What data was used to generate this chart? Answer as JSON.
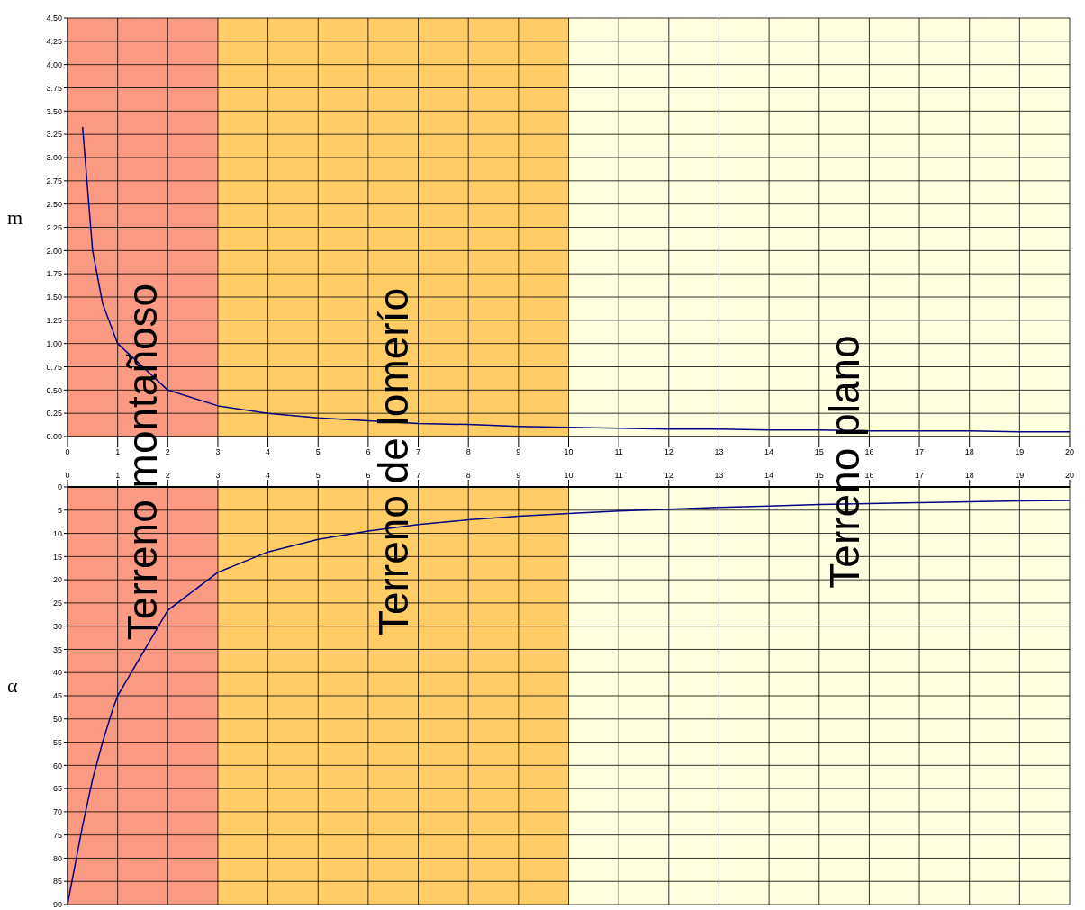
{
  "chart_data": [
    {
      "type": "line",
      "ylabel": "m",
      "xlim": [
        0,
        20
      ],
      "xticks": [
        0,
        1,
        2,
        3,
        4,
        5,
        6,
        7,
        8,
        9,
        10,
        11,
        12,
        13,
        14,
        15,
        16,
        17,
        18,
        19,
        20
      ],
      "ylim": [
        0,
        4.5
      ],
      "yticks": [
        {
          "value": 0,
          "label": "0.00"
        },
        {
          "value": 0.25,
          "label": "0.25"
        },
        {
          "value": 0.5,
          "label": "0.50"
        },
        {
          "value": 0.75,
          "label": "0.75"
        },
        {
          "value": 1,
          "label": "1.00"
        },
        {
          "value": 1.25,
          "label": "1.25"
        },
        {
          "value": 1.5,
          "label": "1.50"
        },
        {
          "value": 1.75,
          "label": "1.75"
        },
        {
          "value": 2,
          "label": "2.00"
        },
        {
          "value": 2.25,
          "label": "2.25"
        },
        {
          "value": 2.5,
          "label": "2.50"
        },
        {
          "value": 2.75,
          "label": "2.75"
        },
        {
          "value": 3,
          "label": "3.00"
        },
        {
          "value": 3.25,
          "label": "3.25"
        },
        {
          "value": 3.5,
          "label": "3.50"
        },
        {
          "value": 3.75,
          "label": "3.75"
        },
        {
          "value": 4,
          "label": "4.00"
        },
        {
          "value": 4.25,
          "label": "4.25"
        },
        {
          "value": 4.5,
          "label": "4.50"
        }
      ],
      "grid": true,
      "marker": "none",
      "line_style": "solid",
      "bands": [
        {
          "axis": "x",
          "from": 0,
          "to": 3,
          "label": "Terreno montañoso",
          "color": "#fb9a82"
        },
        {
          "axis": "x",
          "from": 3,
          "to": 10,
          "label": "Terreno de lomerío",
          "color": "#ffcc66"
        },
        {
          "axis": "x",
          "from": 10,
          "to": 20,
          "label": "Terreno plano",
          "color": "#ffffe0"
        }
      ],
      "series": [
        {
          "color": "#000080",
          "x": [
            0.3,
            0.5,
            0.7,
            1,
            2,
            3,
            4,
            5,
            6,
            7,
            8,
            9,
            10,
            11,
            12,
            13,
            14,
            15,
            16,
            17,
            18,
            19,
            20
          ],
          "values": [
            3.33,
            2,
            1.43,
            1,
            0.5,
            0.33,
            0.25,
            0.2,
            0.17,
            0.14,
            0.13,
            0.11,
            0.1,
            0.09,
            0.08,
            0.08,
            0.07,
            0.07,
            0.06,
            0.06,
            0.06,
            0.05,
            0.05
          ]
        }
      ]
    },
    {
      "type": "line",
      "ylabel": "α",
      "xlim": [
        0,
        20
      ],
      "xticks": [
        0,
        1,
        2,
        3,
        4,
        5,
        6,
        7,
        8,
        9,
        10,
        11,
        12,
        13,
        14,
        15,
        16,
        17,
        18,
        19,
        20
      ],
      "ylim": [
        90,
        0
      ],
      "yticks": [
        0,
        5,
        10,
        15,
        20,
        25,
        30,
        35,
        40,
        45,
        50,
        55,
        60,
        65,
        70,
        75,
        80,
        85,
        90
      ],
      "grid": true,
      "marker": "none",
      "line_style": "solid",
      "bands": [
        {
          "axis": "x",
          "from": 0,
          "to": 3,
          "color": "#fb9a82"
        },
        {
          "axis": "x",
          "from": 3,
          "to": 10,
          "color": "#ffcc66"
        },
        {
          "axis": "x",
          "from": 10,
          "to": 20,
          "color": "#ffffe0"
        }
      ],
      "series": [
        {
          "color": "#000080",
          "x": [
            0,
            0.3,
            0.5,
            0.7,
            0.9,
            1,
            2,
            3,
            4,
            5,
            6,
            7,
            8,
            9,
            10,
            11,
            12,
            13,
            14,
            15,
            16,
            17,
            18,
            19,
            20
          ],
          "values": [
            90,
            73,
            63,
            55,
            48,
            45,
            26.6,
            18.4,
            14,
            11.3,
            9.5,
            8.1,
            7.1,
            6.3,
            5.7,
            5.2,
            4.8,
            4.4,
            4.1,
            3.8,
            3.6,
            3.4,
            3.2,
            3,
            2.9
          ]
        }
      ]
    }
  ]
}
